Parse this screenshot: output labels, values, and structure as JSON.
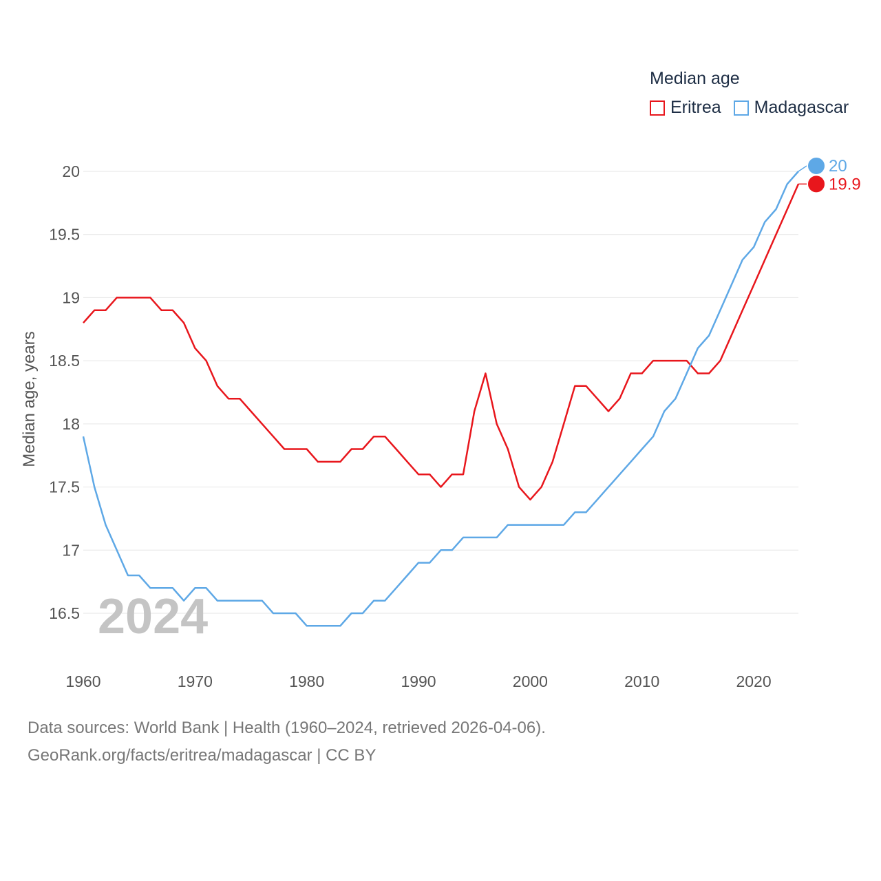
{
  "legend": {
    "title": "Median age",
    "items": [
      {
        "label": "Eritrea",
        "color": "#e8161c"
      },
      {
        "label": "Madagascar",
        "color": "#5ea8e6"
      }
    ]
  },
  "footer": {
    "line1": "Data sources: World Bank | Health (1960–2024, retrieved 2026-04-06).",
    "line2": "GeoRank.org/facts/eritrea/madagascar | CC BY"
  },
  "chart_data": {
    "type": "line",
    "title": "Median age",
    "ylabel": "Median age, years",
    "xlabel": "",
    "year_label": "2024",
    "xlim": [
      1960,
      2024
    ],
    "ylim": [
      16.0,
      20.3
    ],
    "x_ticks": [
      1960,
      1970,
      1980,
      1990,
      2000,
      2010,
      2020
    ],
    "y_ticks": [
      16.5,
      17,
      17.5,
      18,
      18.5,
      19,
      19.5,
      20
    ],
    "y_tick_labels": [
      "16.5",
      "17",
      "17.5",
      "18",
      "18.5",
      "19",
      "19.5",
      "20"
    ],
    "x": [
      1960,
      1961,
      1962,
      1963,
      1964,
      1965,
      1966,
      1967,
      1968,
      1969,
      1970,
      1971,
      1972,
      1973,
      1974,
      1975,
      1976,
      1977,
      1978,
      1979,
      1980,
      1981,
      1982,
      1983,
      1984,
      1985,
      1986,
      1987,
      1988,
      1989,
      1990,
      1991,
      1992,
      1993,
      1994,
      1995,
      1996,
      1997,
      1998,
      1999,
      2000,
      2001,
      2002,
      2003,
      2004,
      2005,
      2006,
      2007,
      2008,
      2009,
      2010,
      2011,
      2012,
      2013,
      2014,
      2015,
      2016,
      2017,
      2018,
      2019,
      2020,
      2021,
      2022,
      2023,
      2024
    ],
    "series": [
      {
        "name": "Eritrea",
        "color": "#e8161c",
        "end_label": "19.9",
        "values": [
          18.8,
          18.9,
          18.9,
          19.0,
          19.0,
          19.0,
          19.0,
          18.9,
          18.9,
          18.8,
          18.6,
          18.5,
          18.3,
          18.2,
          18.2,
          18.1,
          18.0,
          17.9,
          17.8,
          17.8,
          17.8,
          17.7,
          17.7,
          17.7,
          17.8,
          17.8,
          17.9,
          17.9,
          17.8,
          17.7,
          17.6,
          17.6,
          17.5,
          17.6,
          17.6,
          18.1,
          18.4,
          18.0,
          17.8,
          17.5,
          17.4,
          17.5,
          17.7,
          18.0,
          18.3,
          18.3,
          18.2,
          18.1,
          18.2,
          18.4,
          18.4,
          18.5,
          18.5,
          18.5,
          18.5,
          18.4,
          18.4,
          18.5,
          18.7,
          18.9,
          19.1,
          19.3,
          19.5,
          19.7,
          19.9
        ]
      },
      {
        "name": "Madagascar",
        "color": "#5ea8e6",
        "end_label": "20",
        "values": [
          17.9,
          17.5,
          17.2,
          17.0,
          16.8,
          16.8,
          16.7,
          16.7,
          16.7,
          16.6,
          16.7,
          16.7,
          16.6,
          16.6,
          16.6,
          16.6,
          16.6,
          16.5,
          16.5,
          16.5,
          16.4,
          16.4,
          16.4,
          16.4,
          16.5,
          16.5,
          16.6,
          16.6,
          16.7,
          16.8,
          16.9,
          16.9,
          17.0,
          17.0,
          17.1,
          17.1,
          17.1,
          17.1,
          17.2,
          17.2,
          17.2,
          17.2,
          17.2,
          17.2,
          17.3,
          17.3,
          17.4,
          17.5,
          17.6,
          17.7,
          17.8,
          17.9,
          18.1,
          18.2,
          18.4,
          18.6,
          18.7,
          18.9,
          19.1,
          19.3,
          19.4,
          19.6,
          19.7,
          19.9,
          20.0
        ]
      }
    ]
  }
}
